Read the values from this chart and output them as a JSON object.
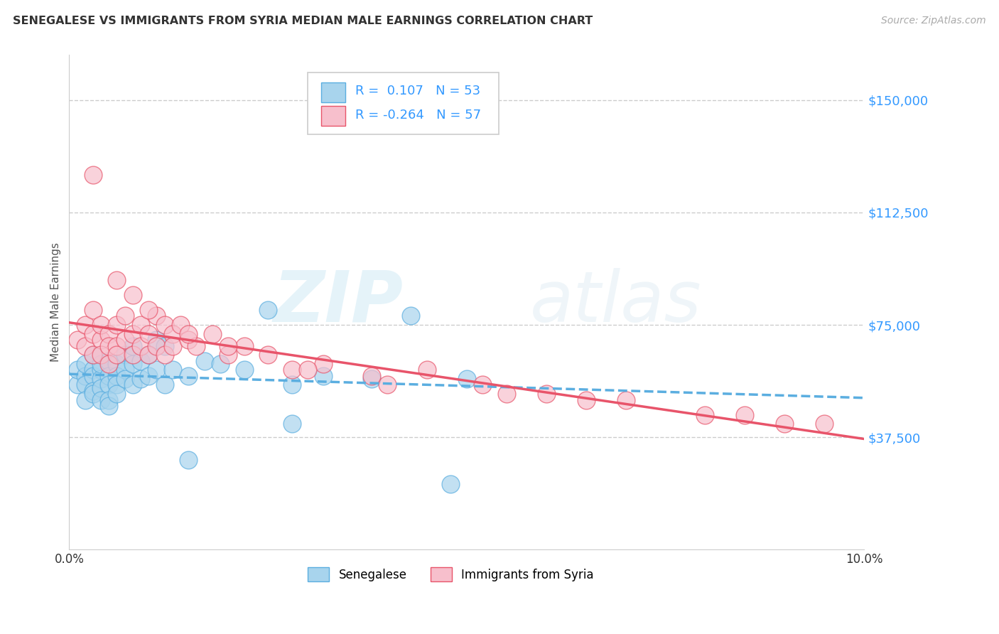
{
  "title": "SENEGALESE VS IMMIGRANTS FROM SYRIA MEDIAN MALE EARNINGS CORRELATION CHART",
  "source": "Source: ZipAtlas.com",
  "ylabel": "Median Male Earnings",
  "xlim": [
    0.0,
    0.1
  ],
  "ylim": [
    0,
    165000
  ],
  "yticks": [
    37500,
    75000,
    112500,
    150000
  ],
  "ytick_labels": [
    "$37,500",
    "$75,000",
    "$112,500",
    "$150,000"
  ],
  "color_blue": "#a8d4ed",
  "color_pink": "#f7bfcc",
  "line_blue": "#5baee0",
  "line_pink": "#e8546a",
  "legend_R_blue": "0.107",
  "legend_N_blue": "53",
  "legend_R_pink": "-0.264",
  "legend_N_pink": "57",
  "legend_label_blue": "Senegalese",
  "legend_label_pink": "Immigrants from Syria",
  "watermark_zip": "ZIP",
  "watermark_atlas": "atlas",
  "blue_x": [
    0.001,
    0.001,
    0.002,
    0.002,
    0.002,
    0.002,
    0.003,
    0.003,
    0.003,
    0.003,
    0.003,
    0.004,
    0.004,
    0.004,
    0.004,
    0.004,
    0.005,
    0.005,
    0.005,
    0.005,
    0.005,
    0.006,
    0.006,
    0.006,
    0.006,
    0.007,
    0.007,
    0.007,
    0.008,
    0.008,
    0.008,
    0.009,
    0.009,
    0.01,
    0.01,
    0.011,
    0.011,
    0.012,
    0.012,
    0.013,
    0.015,
    0.017,
    0.019,
    0.022,
    0.025,
    0.028,
    0.032,
    0.038,
    0.043,
    0.05,
    0.015,
    0.028,
    0.048
  ],
  "blue_y": [
    55000,
    60000,
    58000,
    62000,
    55000,
    50000,
    60000,
    58000,
    53000,
    65000,
    52000,
    60000,
    57000,
    54000,
    62000,
    50000,
    63000,
    58000,
    55000,
    50000,
    48000,
    62000,
    58000,
    55000,
    52000,
    65000,
    60000,
    57000,
    68000,
    62000,
    55000,
    63000,
    57000,
    65000,
    58000,
    70000,
    60000,
    68000,
    55000,
    60000,
    58000,
    63000,
    62000,
    60000,
    80000,
    55000,
    58000,
    57000,
    78000,
    57000,
    30000,
    42000,
    22000
  ],
  "pink_x": [
    0.001,
    0.002,
    0.002,
    0.003,
    0.003,
    0.003,
    0.004,
    0.004,
    0.004,
    0.005,
    0.005,
    0.005,
    0.006,
    0.006,
    0.006,
    0.007,
    0.007,
    0.008,
    0.008,
    0.009,
    0.009,
    0.01,
    0.01,
    0.011,
    0.011,
    0.012,
    0.012,
    0.013,
    0.013,
    0.014,
    0.015,
    0.016,
    0.018,
    0.02,
    0.022,
    0.025,
    0.028,
    0.032,
    0.038,
    0.045,
    0.052,
    0.06,
    0.07,
    0.085,
    0.09,
    0.003,
    0.006,
    0.008,
    0.01,
    0.015,
    0.02,
    0.03,
    0.04,
    0.055,
    0.065,
    0.08,
    0.095
  ],
  "pink_y": [
    70000,
    68000,
    75000,
    72000,
    65000,
    80000,
    70000,
    75000,
    65000,
    72000,
    68000,
    62000,
    75000,
    68000,
    65000,
    78000,
    70000,
    72000,
    65000,
    75000,
    68000,
    72000,
    65000,
    78000,
    68000,
    75000,
    65000,
    72000,
    68000,
    75000,
    70000,
    68000,
    72000,
    65000,
    68000,
    65000,
    60000,
    62000,
    58000,
    60000,
    55000,
    52000,
    50000,
    45000,
    42000,
    125000,
    90000,
    85000,
    80000,
    72000,
    68000,
    60000,
    55000,
    52000,
    50000,
    45000,
    42000
  ]
}
